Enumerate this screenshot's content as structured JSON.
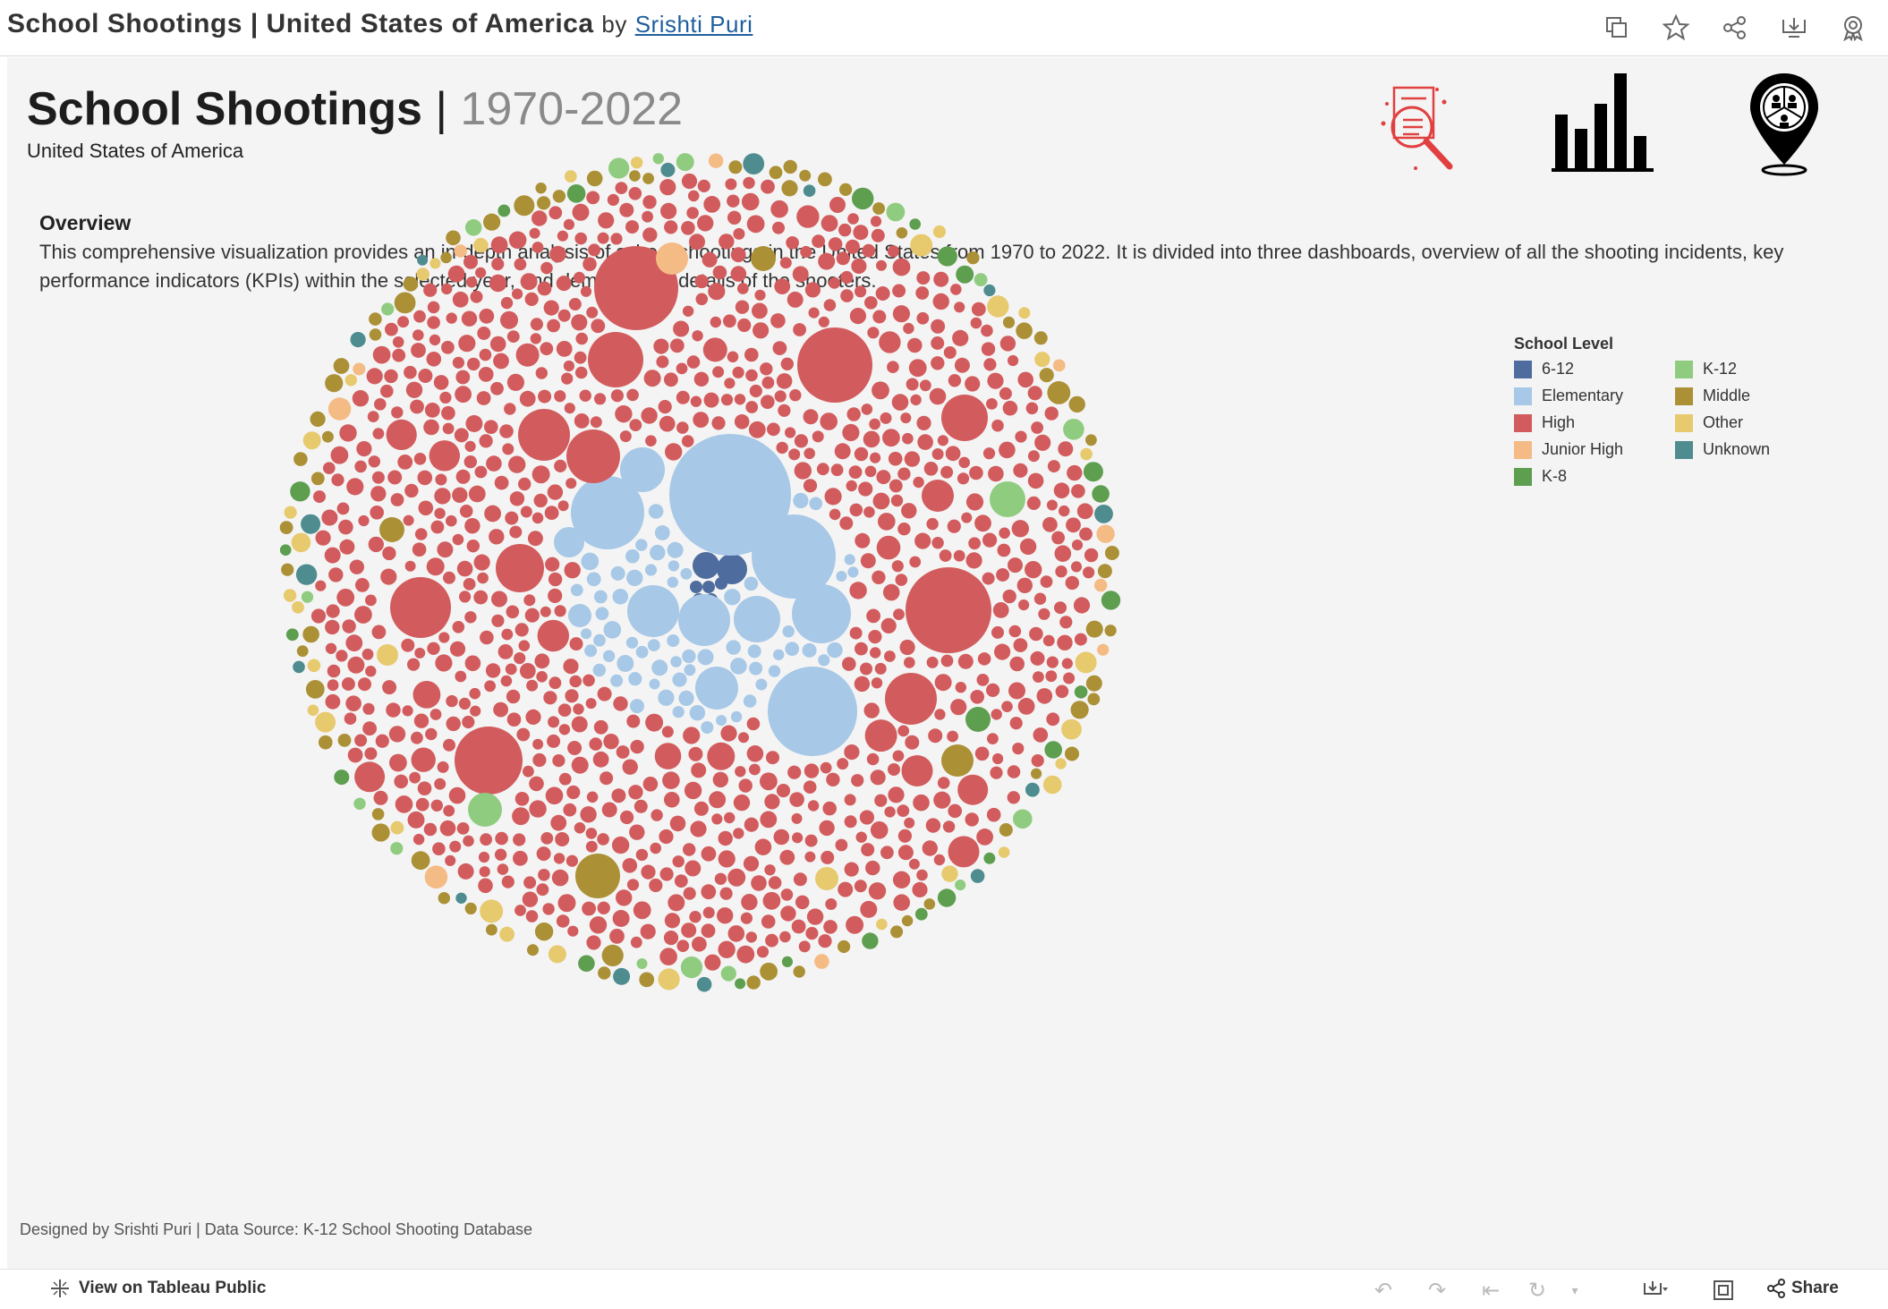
{
  "topbar": {
    "title": "School Shootings | United States of America",
    "by": "by",
    "author": "Srishti Puri",
    "icons": [
      "duplicate-icon",
      "favorite-star-icon",
      "share-icon",
      "download-icon",
      "badge-icon"
    ]
  },
  "dashboard": {
    "title": "School Shootings",
    "separator": "|",
    "years": "1970-2022",
    "subtitle": "United States of America",
    "overview_heading": "Overview",
    "overview_text": "This comprehensive visualization provides an in-depth analysis of school shootings in the United States from 1970 to 2022. It is divided into three dashboards, overview of all the shooting incidents, key performance indicators (KPIs) within the selected year, and demographic details of the shooters.",
    "nav_icons": [
      "report-magnifier-icon",
      "bar-chart-icon",
      "location-pin-people-icon"
    ],
    "credit": "Designed by Srishti Puri | Data Source: K-12 School Shooting Database"
  },
  "legend": {
    "title": "School Level",
    "items": [
      {
        "label": "6-12",
        "color": "#4e6d9e"
      },
      {
        "label": "K-12",
        "color": "#8fcc7f"
      },
      {
        "label": "Elementary",
        "color": "#a7c8e6"
      },
      {
        "label": "Middle",
        "color": "#ab9036"
      },
      {
        "label": "High",
        "color": "#d25c5d"
      },
      {
        "label": "Other",
        "color": "#e7c96e"
      },
      {
        "label": "Junior High",
        "color": "#f4bb84"
      },
      {
        "label": "Unknown",
        "color": "#4e8c8f"
      },
      {
        "label": "K-8",
        "color": "#5e9e4f"
      }
    ]
  },
  "bottombar": {
    "view_label": "View on Tableau Public",
    "share_label": "Share"
  }
}
